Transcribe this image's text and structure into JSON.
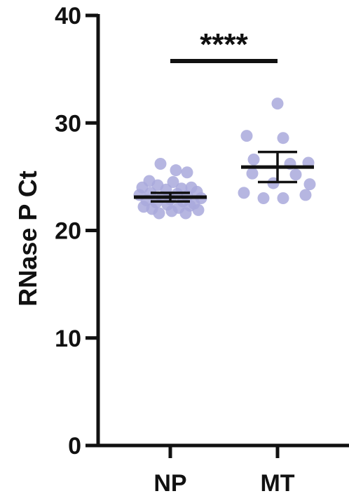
{
  "chart_data": {
    "type": "scatter",
    "ylabel": "RNase P Ct",
    "ylim": [
      0,
      40
    ],
    "yticks": [
      0,
      10,
      20,
      30,
      40
    ],
    "categories": [
      "NP",
      "MT"
    ],
    "grid": false,
    "point_color": "#a9a9dc",
    "line_color": "#111111",
    "series": [
      {
        "category": "NP",
        "values": [
          26.2,
          25.6,
          25.4,
          24.6,
          24.5,
          24.2,
          24.0,
          24.0,
          23.9,
          23.8,
          23.6,
          23.5,
          23.4,
          23.3,
          23.2,
          23.1,
          23.0,
          22.9,
          22.8,
          22.7,
          22.6,
          22.5,
          22.4,
          22.3,
          22.2,
          22.1,
          22.0,
          21.9,
          21.8,
          21.6,
          21.6
        ],
        "mean": 23.1,
        "error": [
          22.7,
          23.5
        ]
      },
      {
        "category": "MT",
        "values": [
          31.8,
          28.8,
          28.6,
          26.6,
          26.3,
          26.2,
          25.3,
          25.2,
          24.4,
          24.3,
          23.5,
          23.3,
          23.0,
          23.0
        ],
        "mean": 25.9,
        "error": [
          24.5,
          27.3
        ]
      }
    ],
    "annotations": [
      {
        "text": "****",
        "between": [
          "NP",
          "MT"
        ]
      }
    ]
  }
}
